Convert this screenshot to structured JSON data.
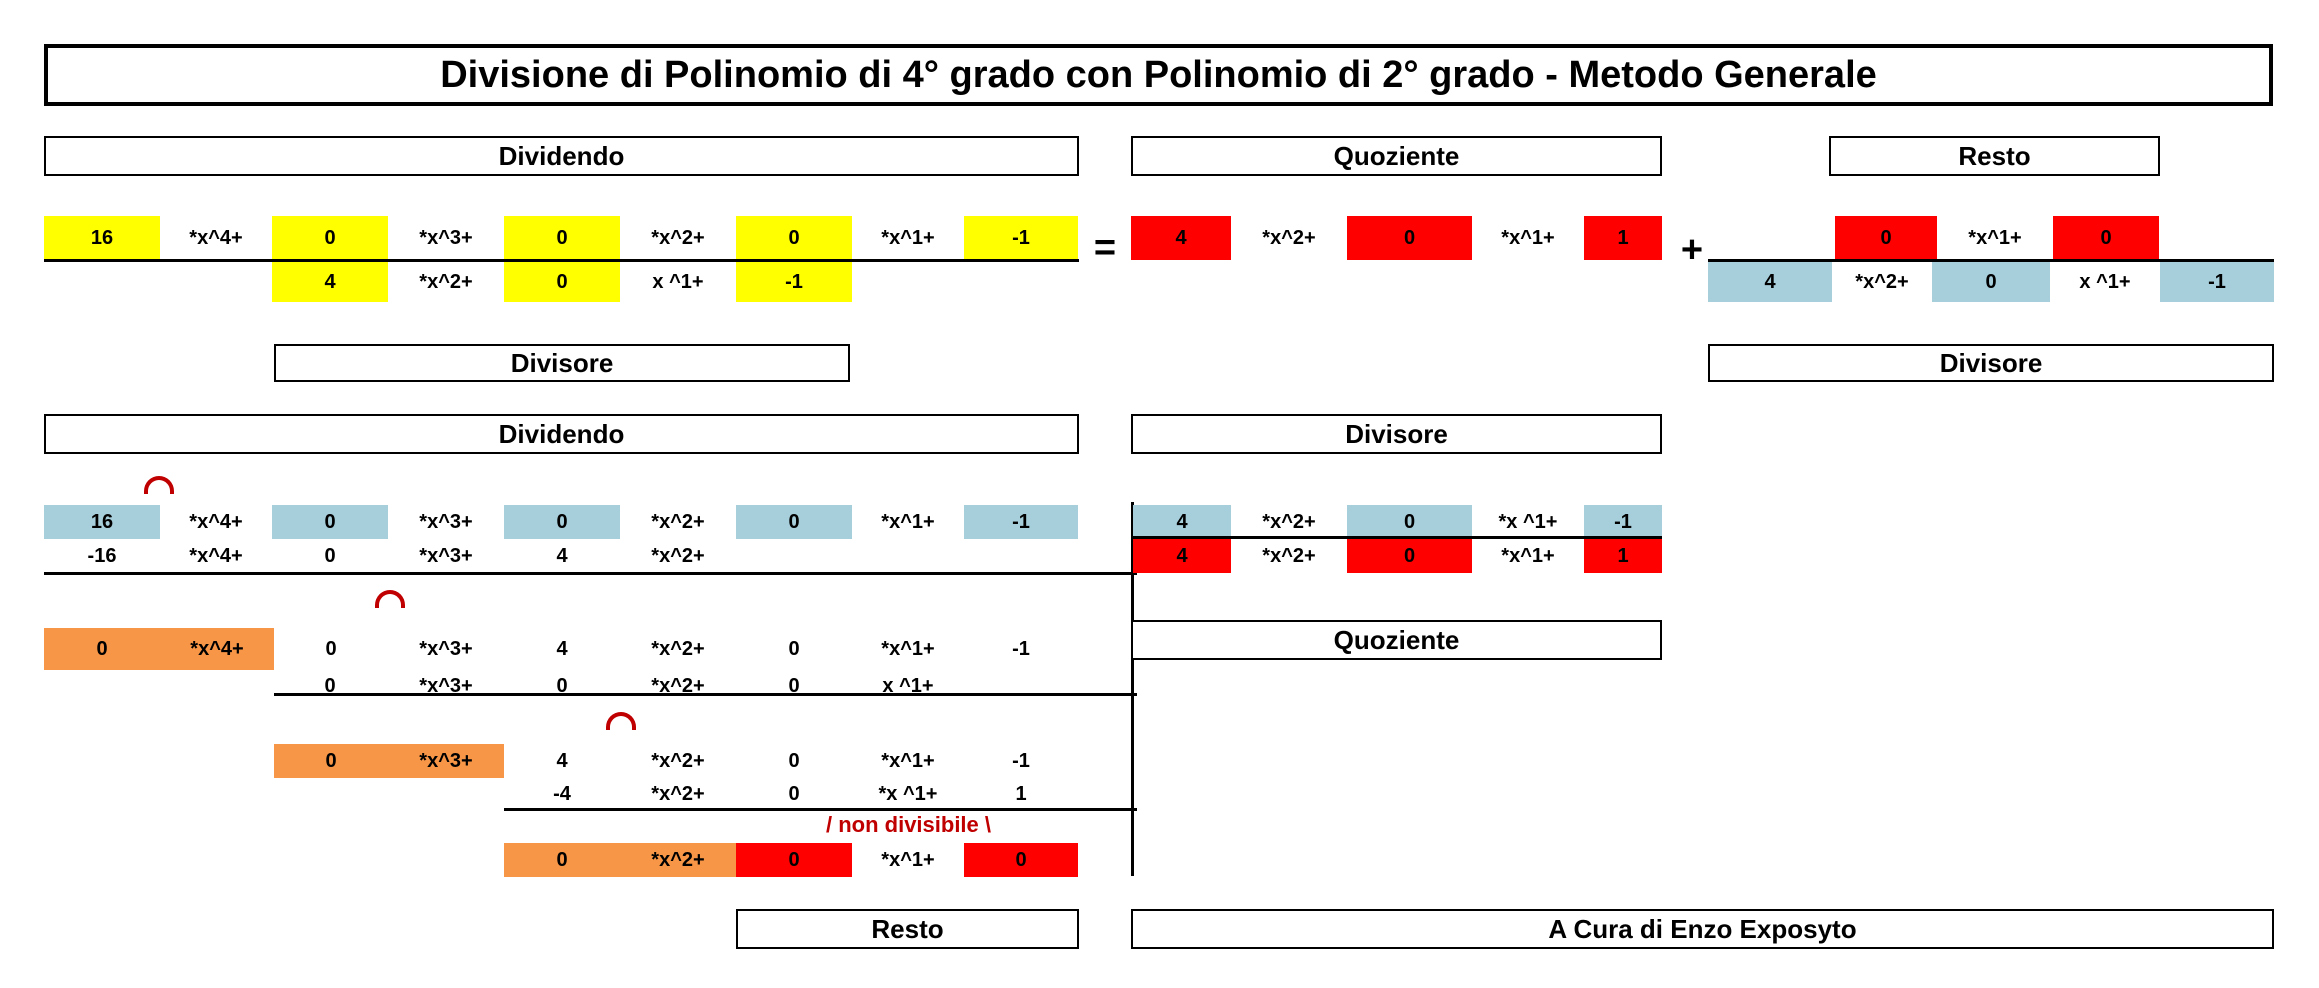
{
  "title": "Divisione di Polinomio di 4° grado con Polinomio di 2° grado - Metodo Generale",
  "labels": {
    "dividendo": "Dividendo",
    "quoziente": "Quoziente",
    "resto": "Resto",
    "divisore": "Divisore",
    "non_divisibile": "/ non divisibile \\",
    "credit": "A Cura di Enzo Exposyto"
  },
  "symbols": {
    "equals": "=",
    "plus": "+"
  },
  "terms": {
    "x4": "*x^4+",
    "x3": "*x^3+",
    "x2": "*x^2+",
    "x1": "*x^1+",
    "x1b": "x ^1+",
    "x1c": "*x ^1+"
  },
  "top": {
    "dividend": [
      "16",
      "0",
      "0",
      "0",
      "-1"
    ],
    "divisor": [
      "4",
      "0",
      "-1"
    ],
    "quotient": [
      "4",
      "0",
      "1"
    ],
    "remainder": [
      "0",
      "0"
    ],
    "remainder_divisor": [
      "4",
      "0",
      "-1"
    ]
  },
  "long": {
    "row1": [
      "16",
      "0",
      "0",
      "0",
      "-1"
    ],
    "row2": [
      "-16",
      "0",
      "4"
    ],
    "row3": [
      "0",
      "0",
      "4",
      "0",
      "-1"
    ],
    "row4": [
      "0",
      "0",
      "0"
    ],
    "row5": [
      "0",
      "4",
      "0",
      "-1"
    ],
    "row6": [
      "-4",
      "0",
      "1"
    ],
    "row7": [
      "0",
      "0",
      "0"
    ],
    "divisor": [
      "4",
      "0",
      "-1"
    ],
    "quotient": [
      "4",
      "0",
      "1"
    ]
  }
}
